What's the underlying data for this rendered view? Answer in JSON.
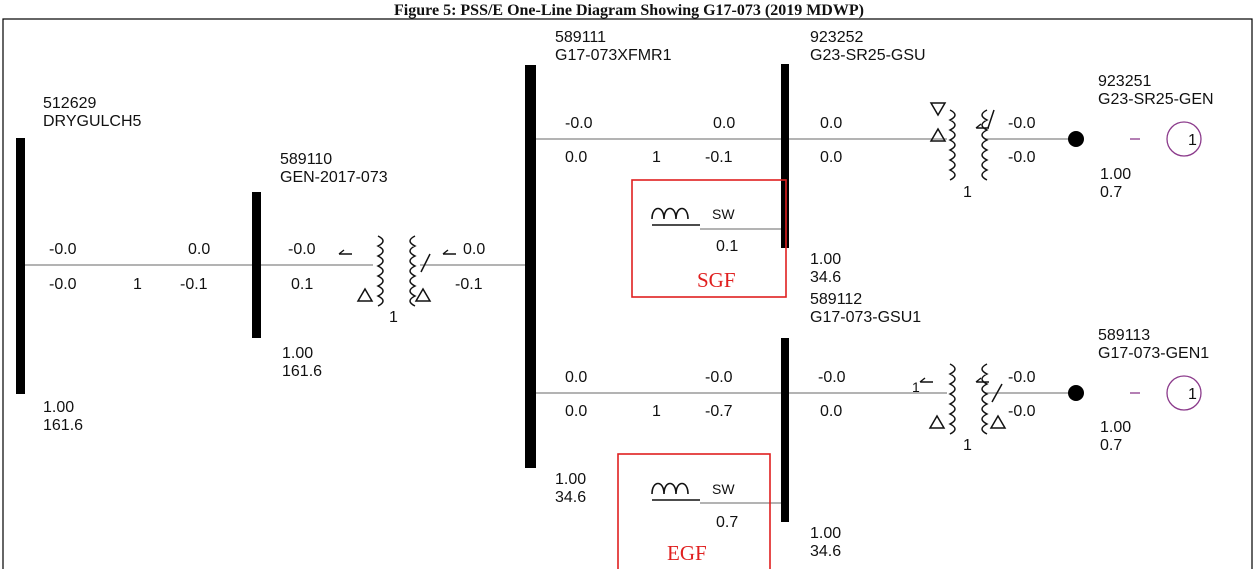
{
  "caption": "Figure 5: PSS/E One-Line Diagram Showing G17-073 (2019 MDWP)",
  "colors": {
    "line": "#9a9a9a",
    "bus": "#000000",
    "machine": "#8b3a8b",
    "highlight": "#e02020"
  },
  "buses": {
    "b512629": {
      "number": "512629",
      "name": "DRYGULCH5",
      "voltage": "1.00",
      "angle": "161.6"
    },
    "b589110": {
      "number": "589110",
      "name": "GEN-2017-073",
      "voltage": "1.00",
      "angle": "161.6"
    },
    "b589111": {
      "number": "589111",
      "name": "G17-073XFMR1",
      "voltage": "1.00",
      "angle": "34.6"
    },
    "b923252": {
      "number": "923252",
      "name": "G23-SR25-GSU",
      "voltage": "1.00",
      "angle": "34.6"
    },
    "b923251": {
      "number": "923251",
      "name": "G23-SR25-GEN",
      "voltage": "1.00",
      "angle": "0.7"
    },
    "b589112": {
      "number": "589112",
      "name": "G17-073-GSU1",
      "voltage": "1.00",
      "angle": "34.6"
    },
    "b589113": {
      "number": "589113",
      "name": "G17-073-GEN1",
      "voltage": "1.00",
      "angle": "0.7"
    }
  },
  "branches": {
    "line_512629_589110": {
      "from_top": "-0.0",
      "from_bottom": "-0.0",
      "ckt": "1",
      "to_top": "0.0",
      "to_bottom": "-0.1"
    },
    "xfmr_589110_589111": {
      "from_top": "-0.0",
      "from_bottom": "0.1",
      "ckt": "1",
      "to_top": "0.0",
      "to_bottom": "-0.1"
    },
    "line_589111_923252": {
      "from_top": "-0.0",
      "from_bottom": "0.0",
      "ckt": "1",
      "to_top": "0.0",
      "to_bottom": "-0.1"
    },
    "xfmr_923252_923251": {
      "from_top": "0.0",
      "from_bottom": "0.0",
      "ckt": "1",
      "to_top": "-0.0",
      "to_bottom": "-0.0"
    },
    "line_589111_589112": {
      "from_top": "0.0",
      "from_bottom": "0.0",
      "ckt": "1",
      "to_top": "-0.0",
      "to_bottom": "-0.7"
    },
    "xfmr_589112_589113": {
      "from_top": "-0.0",
      "from_bottom": "0.0",
      "ckt": "1",
      "to_top": "-0.0",
      "to_bottom": "-0.0"
    }
  },
  "generators": {
    "g923251": {
      "id": "1"
    },
    "g589113": {
      "id": "1"
    }
  },
  "shunts": {
    "sgf": {
      "type": "SW",
      "value": "0.1",
      "tag": "SGF"
    },
    "egf": {
      "type": "SW",
      "value": "0.7",
      "tag": "EGF"
    }
  }
}
